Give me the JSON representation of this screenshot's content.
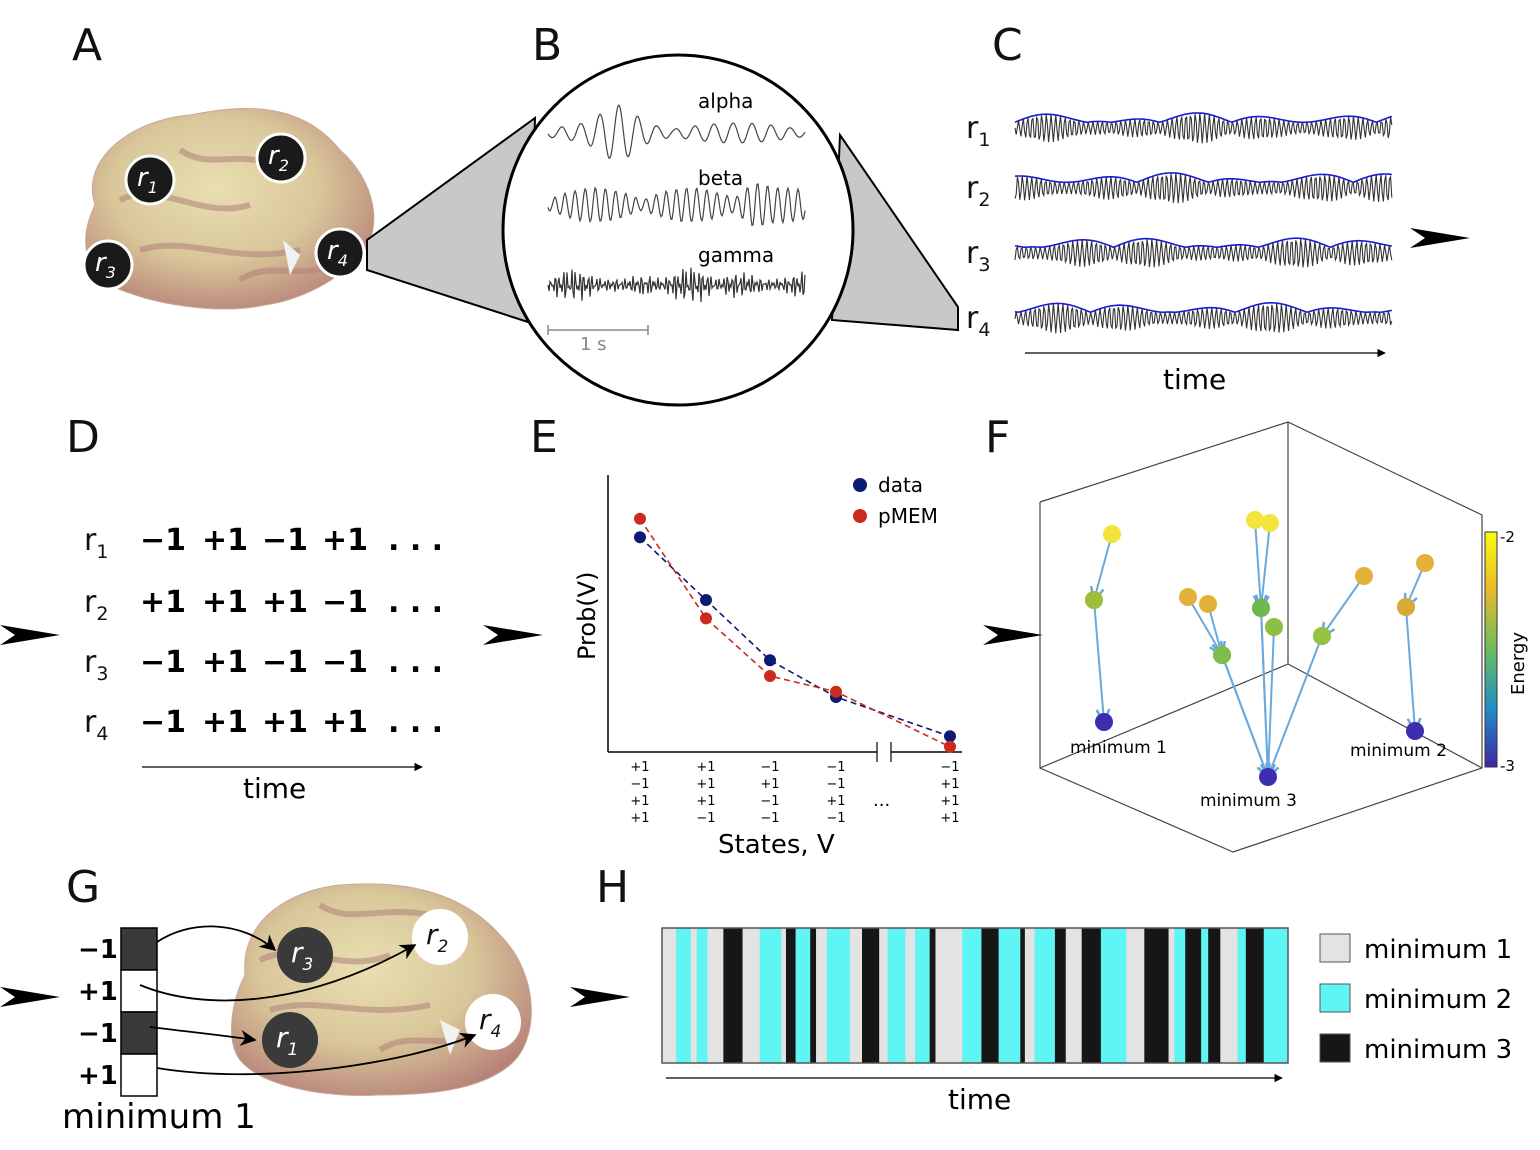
{
  "panels": {
    "A": "A",
    "B": "B",
    "C": "C",
    "D": "D",
    "E": "E",
    "F": "F",
    "G": "G",
    "H": "H"
  },
  "panel_a": {
    "regions": [
      {
        "base": "r",
        "sub": "1"
      },
      {
        "base": "r",
        "sub": "2"
      },
      {
        "base": "r",
        "sub": "3"
      },
      {
        "base": "r",
        "sub": "4"
      }
    ]
  },
  "panel_b": {
    "bands": [
      "alpha",
      "beta",
      "gamma"
    ],
    "scale_label": "1 s"
  },
  "panel_c": {
    "signal_labels": [
      {
        "base": "r",
        "sub": "1"
      },
      {
        "base": "r",
        "sub": "2"
      },
      {
        "base": "r",
        "sub": "3"
      },
      {
        "base": "r",
        "sub": "4"
      }
    ],
    "time_label": "time",
    "colors": {
      "envelope": "#1a1ad6",
      "signal": "#333333"
    }
  },
  "panel_d": {
    "rows": [
      {
        "base": "r",
        "sub": "1",
        "values": [
          "−1",
          "+1",
          "−1",
          "+1"
        ]
      },
      {
        "base": "r",
        "sub": "2",
        "values": [
          "+1",
          "+1",
          "+1",
          "−1"
        ]
      },
      {
        "base": "r",
        "sub": "3",
        "values": [
          "−1",
          "+1",
          "−1",
          "−1"
        ]
      },
      {
        "base": "r",
        "sub": "4",
        "values": [
          "−1",
          "+1",
          "+1",
          "+1"
        ]
      }
    ],
    "ellipsis": ". . .",
    "time_label": "time"
  },
  "chart_data": {
    "type": "scatter",
    "xlabel": "States, V",
    "ylabel": "Prob(V)",
    "state_ticks": [
      [
        "+1",
        "−1",
        "+1",
        "+1"
      ],
      [
        "+1",
        "+1",
        "+1",
        "−1"
      ],
      [
        "−1",
        "+1",
        "−1",
        "−1"
      ],
      [
        "−1",
        "−1",
        "+1",
        "−1"
      ],
      [
        "−1",
        "+1",
        "+1",
        "+1"
      ]
    ],
    "break_label": "...",
    "series": [
      {
        "name": "data",
        "color": "#0d1a73",
        "values": [
          0.82,
          0.58,
          0.35,
          0.21,
          0.06
        ]
      },
      {
        "name": "pMEM",
        "color": "#cc2a1e",
        "values": [
          0.89,
          0.51,
          0.29,
          0.23,
          0.02
        ]
      }
    ],
    "ylim": [
      0,
      1
    ]
  },
  "panel_f": {
    "minima_labels": [
      "minimum 1",
      "minimum 2",
      "minimum 3"
    ],
    "colorbar": {
      "label": "Energy",
      "max": "-2",
      "min": "-3"
    },
    "colors": {
      "arrow": "#6aa9dc"
    }
  },
  "panel_g": {
    "state_values": [
      "−1",
      "+1",
      "−1",
      "+1"
    ],
    "regions": [
      {
        "base": "r",
        "sub": "3"
      },
      {
        "base": "r",
        "sub": "2"
      },
      {
        "base": "r",
        "sub": "1"
      },
      {
        "base": "r",
        "sub": "4"
      }
    ],
    "caption": "minimum 1"
  },
  "panel_h": {
    "legend": [
      {
        "label": "minimum 1",
        "color": "#e3e3e3"
      },
      {
        "label": "minimum 2",
        "color": "#5ff5f5"
      },
      {
        "label": "minimum 3",
        "color": "#161616"
      }
    ],
    "time_label": "time",
    "sequence": [
      1,
      1,
      2,
      1,
      2,
      1,
      3,
      3,
      1,
      2,
      2,
      1,
      3,
      2,
      3,
      1,
      2,
      2,
      1,
      3,
      1,
      2,
      2,
      1,
      2,
      3,
      1,
      1,
      2,
      2,
      3,
      2,
      2,
      3,
      1,
      2,
      2,
      3,
      1,
      3,
      3,
      2,
      2,
      1,
      1,
      3,
      3,
      1,
      2,
      3,
      2,
      3,
      1,
      2,
      3,
      3,
      2,
      2
    ]
  }
}
